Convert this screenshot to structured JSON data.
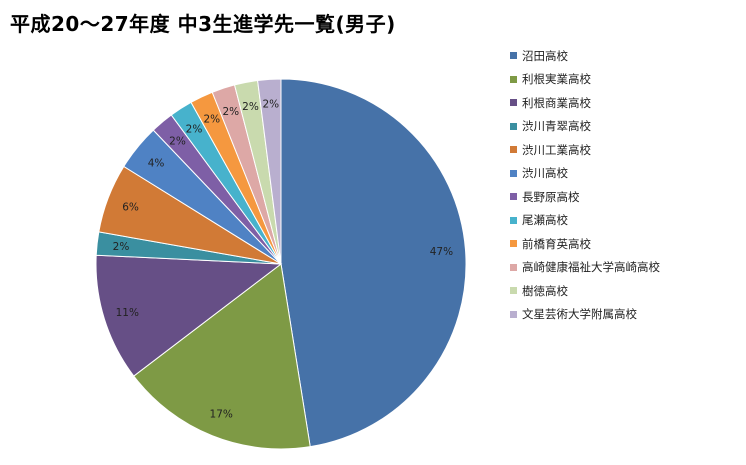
{
  "chart_data": {
    "type": "pie",
    "title": "平成20〜27年度  中3生進学先一覧(男子)",
    "legend_position": "right",
    "slices": [
      {
        "name": "沼田高校",
        "value": 47,
        "label": "47%",
        "color": "#4672A8"
      },
      {
        "name": "利根実業高校",
        "value": 17,
        "label": "17%",
        "color": "#7E9A45"
      },
      {
        "name": "利根商業高校",
        "value": 11,
        "label": "11%",
        "color": "#664F86"
      },
      {
        "name": "渋川青翠高校",
        "value": 2,
        "label": "2%",
        "color": "#3A8FA0"
      },
      {
        "name": "渋川工業高校",
        "value": 6,
        "label": "6%",
        "color": "#D17A36"
      },
      {
        "name": "渋川高校",
        "value": 4,
        "label": "4%",
        "color": "#4F82C4"
      },
      {
        "name": "長野原高校",
        "value": 2,
        "label": "2%",
        "color": "#7E5FA6"
      },
      {
        "name": "尾瀬高校",
        "value": 2,
        "label": "2%",
        "color": "#47B2CC"
      },
      {
        "name": "前橋育英高校",
        "value": 2,
        "label": "2%",
        "color": "#F5983F"
      },
      {
        "name": "高崎健康福祉大学高崎高校",
        "value": 2,
        "label": "2%",
        "color": "#DDA8A6"
      },
      {
        "name": "樹徳高校",
        "value": 2,
        "label": "2%",
        "color": "#C9DAAE"
      },
      {
        "name": "文星芸術大学附属高校",
        "value": 2,
        "label": "2%",
        "color": "#B9AFCF"
      }
    ]
  }
}
